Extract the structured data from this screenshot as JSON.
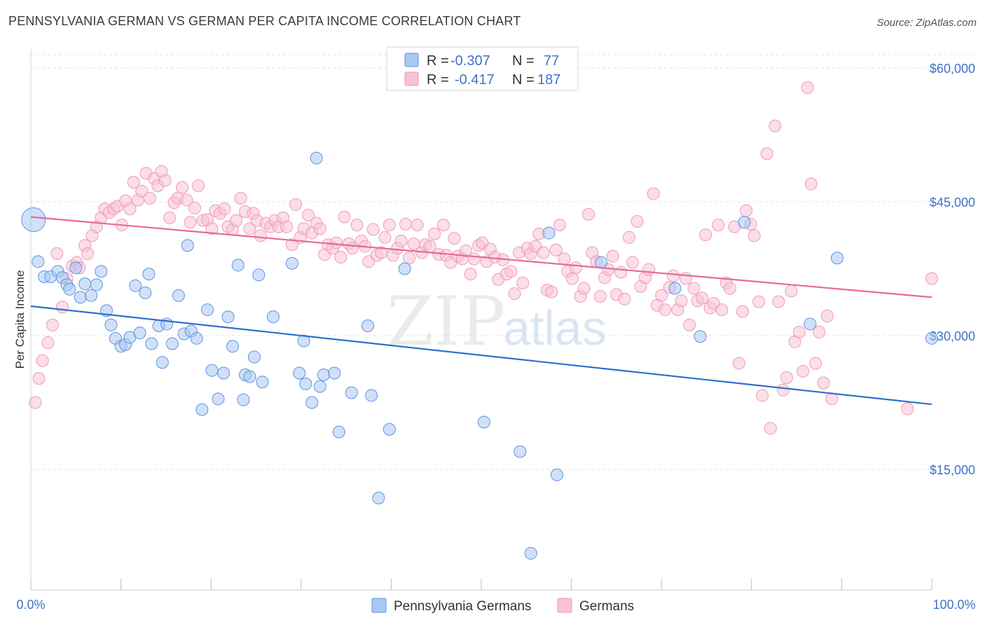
{
  "title": "PENNSYLVANIA GERMAN VS GERMAN PER CAPITA INCOME CORRELATION CHART",
  "source": "Source: ZipAtlas.com",
  "chart_data": {
    "type": "scatter",
    "ylabel": "Per Capita Income",
    "xlim": [
      0,
      100
    ],
    "ylim": [
      0,
      63000
    ],
    "x_tick_labels": {
      "left": "0.0%",
      "right": "100.0%"
    },
    "y_ticks": [
      {
        "value": 60000,
        "label": "$60,000"
      },
      {
        "value": 45000,
        "label": "$45,000"
      },
      {
        "value": 30000,
        "label": "$30,000"
      },
      {
        "value": 15000,
        "label": "$15,000"
      }
    ],
    "grid": true,
    "legend_position": "top-center",
    "watermark": {
      "a": "ZIP",
      "b": "atlas"
    },
    "series": [
      {
        "name": "Pennsylvania Germans",
        "color": "#5b93e0",
        "fill": "#a9c8f0",
        "line_color": "#2f6fd1",
        "r_label": "R =",
        "r_value": "-0.307",
        "n_label": "N =",
        "n_value": "77",
        "trend": {
          "x": [
            0,
            100
          ],
          "y": [
            33300,
            22300
          ]
        },
        "points": [
          [
            0.3,
            43000
          ],
          [
            0.8,
            38300
          ],
          [
            1.5,
            36600
          ],
          [
            2.2,
            36600
          ],
          [
            3.0,
            37200
          ],
          [
            3.5,
            36500
          ],
          [
            4.0,
            35700
          ],
          [
            4.3,
            35200
          ],
          [
            5.0,
            37600
          ],
          [
            5.5,
            34300
          ],
          [
            6.0,
            35800
          ],
          [
            6.7,
            34500
          ],
          [
            7.3,
            35700
          ],
          [
            7.8,
            37200
          ],
          [
            8.4,
            32800
          ],
          [
            8.9,
            31200
          ],
          [
            9.4,
            29700
          ],
          [
            10.0,
            28800
          ],
          [
            10.5,
            29000
          ],
          [
            11.0,
            29800
          ],
          [
            11.6,
            35600
          ],
          [
            12.1,
            30300
          ],
          [
            12.7,
            34800
          ],
          [
            13.1,
            36900
          ],
          [
            13.4,
            29100
          ],
          [
            14.2,
            31100
          ],
          [
            14.6,
            27000
          ],
          [
            15.1,
            31300
          ],
          [
            15.7,
            29100
          ],
          [
            16.4,
            34500
          ],
          [
            17.0,
            30200
          ],
          [
            17.4,
            40100
          ],
          [
            17.8,
            30500
          ],
          [
            18.4,
            29700
          ],
          [
            19.0,
            21700
          ],
          [
            19.6,
            32900
          ],
          [
            20.1,
            26100
          ],
          [
            20.8,
            22900
          ],
          [
            21.4,
            25800
          ],
          [
            21.9,
            32100
          ],
          [
            22.4,
            28800
          ],
          [
            23.0,
            37900
          ],
          [
            23.6,
            22800
          ],
          [
            23.8,
            25600
          ],
          [
            24.3,
            25400
          ],
          [
            24.8,
            27600
          ],
          [
            25.3,
            36800
          ],
          [
            25.7,
            24800
          ],
          [
            26.9,
            32100
          ],
          [
            29.0,
            38100
          ],
          [
            29.8,
            25800
          ],
          [
            30.3,
            29400
          ],
          [
            30.5,
            24600
          ],
          [
            31.2,
            22500
          ],
          [
            31.7,
            49900
          ],
          [
            32.1,
            24300
          ],
          [
            32.5,
            25600
          ],
          [
            33.7,
            25800
          ],
          [
            34.2,
            19200
          ],
          [
            35.6,
            23600
          ],
          [
            37.4,
            31100
          ],
          [
            37.8,
            23300
          ],
          [
            38.6,
            11800
          ],
          [
            39.8,
            19500
          ],
          [
            41.5,
            37500
          ],
          [
            50.3,
            20300
          ],
          [
            54.3,
            17000
          ],
          [
            55.5,
            5600
          ],
          [
            57.5,
            41500
          ],
          [
            58.4,
            14400
          ],
          [
            63.3,
            38200
          ],
          [
            71.5,
            35300
          ],
          [
            74.3,
            29900
          ],
          [
            79.2,
            42700
          ],
          [
            86.5,
            31300
          ],
          [
            89.5,
            38700
          ],
          [
            100.0,
            29700
          ]
        ]
      },
      {
        "name": "Germans",
        "color": "#ef9ab8",
        "fill": "#f7c3d5",
        "line_color": "#e76a94",
        "r_label": "R =",
        "r_value": "-0.417",
        "n_label": "N =",
        "n_value": "187",
        "trend": {
          "x": [
            0,
            100
          ],
          "y": [
            43300,
            34300
          ]
        },
        "points": [
          [
            0.5,
            22500
          ],
          [
            0.9,
            25200
          ],
          [
            1.3,
            27200
          ],
          [
            1.9,
            29200
          ],
          [
            2.4,
            31200
          ],
          [
            2.9,
            39200
          ],
          [
            3.5,
            33200
          ],
          [
            4.0,
            36400
          ],
          [
            4.6,
            37800
          ],
          [
            5.1,
            38200
          ],
          [
            5.4,
            37600
          ],
          [
            6.0,
            40100
          ],
          [
            6.3,
            39200
          ],
          [
            6.8,
            41200
          ],
          [
            7.3,
            42200
          ],
          [
            7.8,
            43200
          ],
          [
            8.2,
            44200
          ],
          [
            8.7,
            43800
          ],
          [
            9.2,
            44200
          ],
          [
            9.6,
            44500
          ],
          [
            10.1,
            42400
          ],
          [
            10.5,
            45100
          ],
          [
            11.0,
            44200
          ],
          [
            11.4,
            47200
          ],
          [
            11.9,
            45200
          ],
          [
            12.3,
            46200
          ],
          [
            12.8,
            48200
          ],
          [
            13.2,
            45400
          ],
          [
            13.7,
            47600
          ],
          [
            14.1,
            46800
          ],
          [
            14.5,
            48400
          ],
          [
            14.9,
            47400
          ],
          [
            15.4,
            43200
          ],
          [
            15.9,
            44900
          ],
          [
            16.3,
            45400
          ],
          [
            16.8,
            46600
          ],
          [
            17.3,
            45200
          ],
          [
            17.7,
            42700
          ],
          [
            18.2,
            44300
          ],
          [
            18.6,
            46800
          ],
          [
            19.1,
            42900
          ],
          [
            19.6,
            43000
          ],
          [
            20.1,
            42000
          ],
          [
            20.5,
            44000
          ],
          [
            21.0,
            43700
          ],
          [
            21.5,
            44200
          ],
          [
            21.9,
            42200
          ],
          [
            22.4,
            41900
          ],
          [
            22.8,
            42900
          ],
          [
            23.3,
            45400
          ],
          [
            23.8,
            43900
          ],
          [
            24.3,
            42000
          ],
          [
            24.7,
            43700
          ],
          [
            25.1,
            42900
          ],
          [
            25.5,
            41200
          ],
          [
            26.1,
            42600
          ],
          [
            26.6,
            42200
          ],
          [
            27.1,
            42900
          ],
          [
            27.5,
            42200
          ],
          [
            28.0,
            43200
          ],
          [
            28.4,
            42200
          ],
          [
            29.0,
            40200
          ],
          [
            29.4,
            44700
          ],
          [
            29.9,
            41000
          ],
          [
            30.3,
            42000
          ],
          [
            30.8,
            43500
          ],
          [
            31.2,
            41500
          ],
          [
            31.7,
            42600
          ],
          [
            32.1,
            42000
          ],
          [
            32.6,
            39100
          ],
          [
            33.0,
            40200
          ],
          [
            33.5,
            39800
          ],
          [
            33.9,
            40400
          ],
          [
            34.4,
            38800
          ],
          [
            34.8,
            43300
          ],
          [
            35.3,
            40300
          ],
          [
            35.7,
            39800
          ],
          [
            36.2,
            42400
          ],
          [
            36.7,
            40600
          ],
          [
            37.1,
            40000
          ],
          [
            37.5,
            38300
          ],
          [
            38.0,
            41900
          ],
          [
            38.4,
            39000
          ],
          [
            38.9,
            39300
          ],
          [
            39.3,
            41000
          ],
          [
            39.8,
            42400
          ],
          [
            40.2,
            39000
          ],
          [
            40.7,
            39800
          ],
          [
            41.1,
            40600
          ],
          [
            41.6,
            42500
          ],
          [
            42.0,
            38700
          ],
          [
            42.5,
            40300
          ],
          [
            42.9,
            42400
          ],
          [
            43.4,
            39300
          ],
          [
            43.8,
            40200
          ],
          [
            44.3,
            40000
          ],
          [
            44.8,
            41400
          ],
          [
            45.3,
            39100
          ],
          [
            45.8,
            42400
          ],
          [
            46.1,
            39000
          ],
          [
            46.6,
            38200
          ],
          [
            47.0,
            40900
          ],
          [
            47.4,
            38900
          ],
          [
            47.9,
            38600
          ],
          [
            48.3,
            39500
          ],
          [
            48.8,
            36900
          ],
          [
            49.2,
            38600
          ],
          [
            49.7,
            40100
          ],
          [
            50.1,
            40400
          ],
          [
            50.6,
            38300
          ],
          [
            51.0,
            39700
          ],
          [
            51.5,
            38800
          ],
          [
            51.9,
            36300
          ],
          [
            52.4,
            38500
          ],
          [
            52.8,
            36900
          ],
          [
            53.3,
            37200
          ],
          [
            53.7,
            34700
          ],
          [
            54.2,
            39300
          ],
          [
            54.6,
            35900
          ],
          [
            55.1,
            39800
          ],
          [
            55.5,
            39200
          ],
          [
            56.0,
            40000
          ],
          [
            56.4,
            41400
          ],
          [
            56.9,
            39300
          ],
          [
            57.3,
            35100
          ],
          [
            57.8,
            34900
          ],
          [
            58.3,
            39600
          ],
          [
            58.7,
            42400
          ],
          [
            59.2,
            38600
          ],
          [
            59.6,
            37200
          ],
          [
            60.1,
            36400
          ],
          [
            60.5,
            37600
          ],
          [
            61.0,
            34400
          ],
          [
            61.4,
            35300
          ],
          [
            61.9,
            43600
          ],
          [
            62.3,
            39300
          ],
          [
            62.8,
            38300
          ],
          [
            63.2,
            34400
          ],
          [
            63.7,
            36500
          ],
          [
            64.1,
            37400
          ],
          [
            64.6,
            38900
          ],
          [
            65.0,
            34600
          ],
          [
            65.5,
            37100
          ],
          [
            65.9,
            34100
          ],
          [
            66.4,
            41000
          ],
          [
            66.8,
            38200
          ],
          [
            67.3,
            42800
          ],
          [
            67.7,
            35500
          ],
          [
            68.2,
            36500
          ],
          [
            68.6,
            37400
          ],
          [
            69.1,
            45900
          ],
          [
            69.5,
            33400
          ],
          [
            70.0,
            34500
          ],
          [
            70.4,
            32900
          ],
          [
            70.9,
            35400
          ],
          [
            71.3,
            36700
          ],
          [
            71.8,
            32900
          ],
          [
            72.2,
            33900
          ],
          [
            72.7,
            36400
          ],
          [
            73.1,
            31200
          ],
          [
            73.6,
            35300
          ],
          [
            74.0,
            33900
          ],
          [
            74.5,
            34200
          ],
          [
            74.9,
            41300
          ],
          [
            75.4,
            33100
          ],
          [
            75.8,
            33600
          ],
          [
            76.3,
            42400
          ],
          [
            76.7,
            32900
          ],
          [
            77.2,
            35900
          ],
          [
            77.6,
            35300
          ],
          [
            78.1,
            42200
          ],
          [
            78.6,
            26900
          ],
          [
            79.0,
            32700
          ],
          [
            79.4,
            44000
          ],
          [
            79.9,
            42500
          ],
          [
            80.3,
            41200
          ],
          [
            80.8,
            33800
          ],
          [
            81.2,
            23300
          ],
          [
            81.7,
            50400
          ],
          [
            82.1,
            19600
          ],
          [
            82.6,
            53500
          ],
          [
            83.0,
            33800
          ],
          [
            83.5,
            23900
          ],
          [
            83.9,
            25300
          ],
          [
            84.4,
            35000
          ],
          [
            84.8,
            29300
          ],
          [
            85.3,
            30400
          ],
          [
            85.7,
            26000
          ],
          [
            86.2,
            57800
          ],
          [
            86.6,
            47000
          ],
          [
            87.1,
            26900
          ],
          [
            87.5,
            30400
          ],
          [
            88.0,
            24700
          ],
          [
            88.4,
            32200
          ],
          [
            88.9,
            22900
          ],
          [
            97.3,
            21800
          ],
          [
            100.0,
            36400
          ]
        ]
      }
    ]
  }
}
